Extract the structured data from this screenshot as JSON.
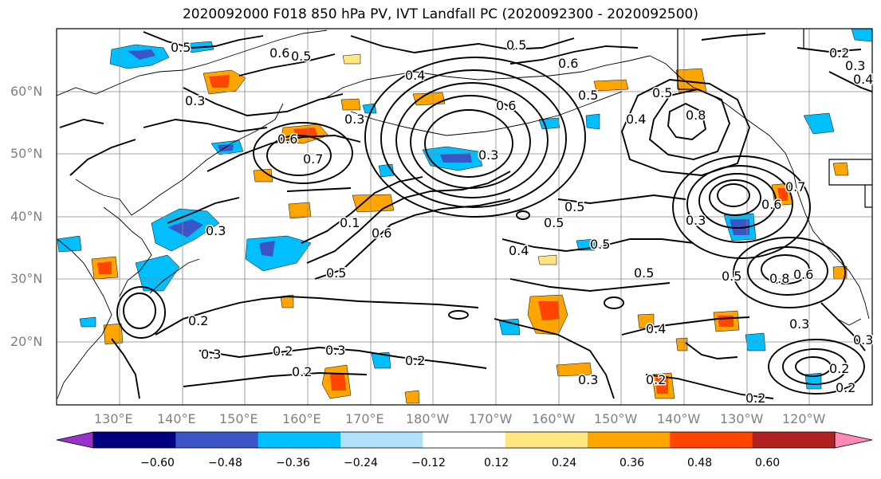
{
  "title": "2020092000 F018 850 hPa PV, IVT Landfall PC (2020092300 - 2020092500)",
  "lat_labels": [
    "60°N",
    "50°N",
    "40°N",
    "30°N",
    "20°N"
  ],
  "lon_labels": [
    "130°E",
    "140°E",
    "150°E",
    "160°E",
    "170°E",
    "180°W",
    "170°W",
    "160°W",
    "150°W",
    "140°W",
    "130°W",
    "120°W"
  ],
  "colorbar": {
    "ticks": [
      "−0.60",
      "−0.48",
      "−0.36",
      "−0.24",
      "−0.12",
      "0.12",
      "0.24",
      "0.36",
      "0.48",
      "0.60"
    ],
    "colors": [
      "#9932CC",
      "#000080",
      "#3A56C6",
      "#00BFFF",
      "#B0E2FF",
      "#FFFFFF",
      "#FFE680",
      "#FFA500",
      "#FF4500",
      "#B22222",
      "#FF88B4"
    ]
  },
  "contour_labels": [
    "0.5",
    "0.6",
    "0.5",
    "0.3",
    "0.3",
    "0.7",
    "0.6",
    "0.4",
    "0.5",
    "0.6",
    "0.6",
    "0.3",
    "0.5",
    "0.4",
    "0.5",
    "0.5",
    "0.8",
    "0.7",
    "0.6",
    "0.2",
    "0.3",
    "0.4",
    "0.1",
    "0.6",
    "0.5",
    "0.4",
    "0.5",
    "0.5",
    "0.5",
    "0.8",
    "0.6",
    "0.5",
    "0.4",
    "0.3",
    "0.2",
    "0.3",
    "0.2",
    "0.2",
    "0.3",
    "0.2",
    "0.3",
    "0.2",
    "0.2",
    "0.2",
    "0.3",
    "0.2",
    "0.3",
    "0.3"
  ]
}
